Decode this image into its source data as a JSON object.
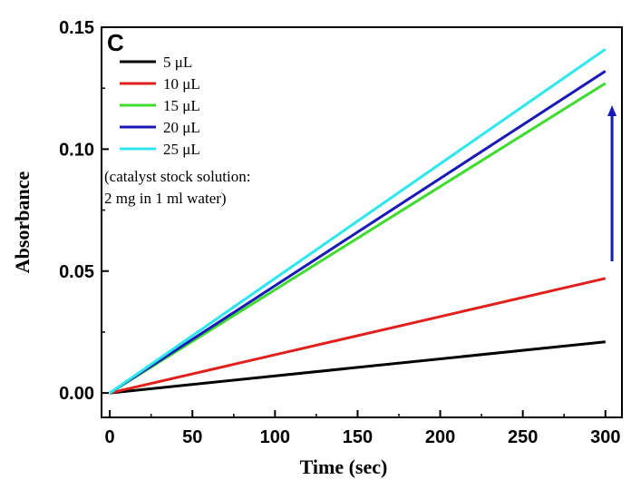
{
  "chart_data": {
    "type": "line",
    "panel_label": "C",
    "xlabel": "Time (sec)",
    "ylabel": "Absorbance",
    "xlim": [
      -5,
      310
    ],
    "ylim": [
      -0.01,
      0.15
    ],
    "xticks": [
      "0",
      "50",
      "100",
      "150",
      "200",
      "250",
      "300"
    ],
    "yticks": [
      "0.00",
      "0.05",
      "0.10",
      "0.15"
    ],
    "xtick_values": [
      0,
      50,
      100,
      150,
      200,
      250,
      300
    ],
    "ytick_values": [
      0.0,
      0.05,
      0.1,
      0.15
    ],
    "legend_position": "top-left",
    "series": [
      {
        "name": "5 μL",
        "color": "#000000",
        "x": [
          0,
          300
        ],
        "y": [
          0.0,
          0.021
        ]
      },
      {
        "name": "10 μL",
        "color": "#e0201c",
        "x": [
          0,
          300
        ],
        "y": [
          0.0,
          0.047
        ]
      },
      {
        "name": "15 μL",
        "color": "#3ddc2e",
        "x": [
          0,
          300
        ],
        "y": [
          0.0,
          0.127
        ]
      },
      {
        "name": "20 μL",
        "color": "#1a1ab8",
        "x": [
          0,
          300
        ],
        "y": [
          0.0,
          0.132
        ]
      },
      {
        "name": "25 μL",
        "color": "#2ee6ee",
        "x": [
          0,
          300
        ],
        "y": [
          0.0,
          0.141
        ]
      }
    ],
    "annotation_lines": [
      "(catalyst stock solution:",
      " 2 mg in 1 ml water)"
    ],
    "arrow": {
      "color": "#1a1ab8",
      "x": 304,
      "y_from": 0.054,
      "y_to": 0.118,
      "direction": "up"
    }
  }
}
